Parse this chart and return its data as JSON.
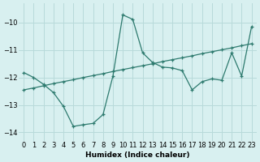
{
  "line1_x": [
    0,
    1,
    2,
    3,
    4,
    5,
    6,
    7,
    8,
    9,
    10,
    11,
    12,
    13,
    14,
    15,
    16,
    17,
    18,
    19,
    20,
    21,
    22,
    23
  ],
  "line1_y": [
    -11.82,
    -12.0,
    -12.25,
    -12.55,
    -13.05,
    -13.78,
    -13.72,
    -13.67,
    -13.35,
    -11.95,
    -9.72,
    -9.88,
    -11.1,
    -11.45,
    -11.62,
    -11.65,
    -11.75,
    -12.45,
    -12.15,
    -12.05,
    -12.1,
    -11.1,
    -11.95,
    -10.15
  ],
  "line2_x": [
    0,
    1,
    2,
    3,
    4,
    5,
    6,
    7,
    8,
    9,
    10,
    11,
    12,
    13,
    14,
    15,
    16,
    17,
    18,
    19,
    20,
    21,
    22,
    23
  ],
  "line2_y": [
    -12.45,
    -12.38,
    -12.3,
    -12.22,
    -12.15,
    -12.08,
    -12.0,
    -11.93,
    -11.86,
    -11.78,
    -11.71,
    -11.64,
    -11.57,
    -11.5,
    -11.42,
    -11.35,
    -11.28,
    -11.21,
    -11.13,
    -11.06,
    -10.99,
    -10.92,
    -10.84,
    -10.77
  ],
  "color": "#2d7a6e",
  "bg_color": "#d8f0f0",
  "grid_color": "#b8dada",
  "xlabel": "Humidex (Indice chaleur)",
  "ylim": [
    -14.3,
    -9.3
  ],
  "xlim": [
    -0.5,
    23.5
  ],
  "yticks": [
    -14,
    -13,
    -12,
    -11,
    -10
  ],
  "xticks": [
    0,
    1,
    2,
    3,
    4,
    5,
    6,
    7,
    8,
    9,
    10,
    11,
    12,
    13,
    14,
    15,
    16,
    17,
    18,
    19,
    20,
    21,
    22,
    23
  ]
}
